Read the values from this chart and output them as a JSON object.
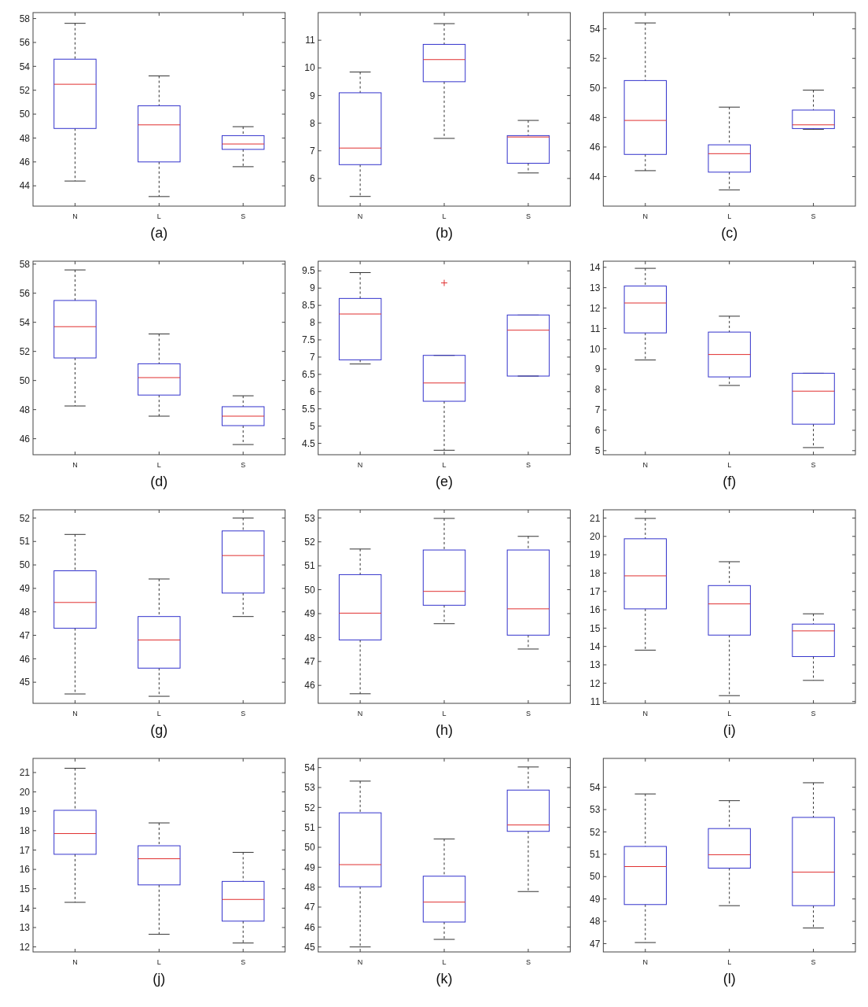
{
  "chart_data": [
    {
      "type": "box",
      "xlabel": "(a)",
      "categories": [
        "N",
        "L",
        "S"
      ],
      "ylim": [
        42.3,
        58.5
      ],
      "yticks": [
        44,
        46,
        48,
        50,
        52,
        54,
        56,
        58
      ],
      "series": [
        {
          "color": "#3333cc",
          "boxes": [
            {
              "low": 44.4,
              "q1": 48.8,
              "median": 52.5,
              "q3": 54.6,
              "high": 57.6
            },
            {
              "low": 43.1,
              "q1": 46.0,
              "median": 49.1,
              "q3": 50.7,
              "high": 53.2
            },
            {
              "low": 45.6,
              "q1": 47.05,
              "median": 47.5,
              "q3": 48.2,
              "high": 48.95
            }
          ]
        }
      ]
    },
    {
      "type": "box",
      "xlabel": "(b)",
      "categories": [
        "N",
        "L",
        "S"
      ],
      "ylim": [
        5,
        12
      ],
      "yticks": [
        6,
        7,
        8,
        9,
        10,
        11
      ],
      "series": [
        {
          "color": "#3333cc",
          "boxes": [
            {
              "low": 5.35,
              "q1": 6.5,
              "median": 7.1,
              "q3": 9.1,
              "high": 9.85
            },
            {
              "low": 7.45,
              "q1": 9.5,
              "median": 10.3,
              "q3": 10.85,
              "high": 11.6
            },
            {
              "low": 6.2,
              "q1": 6.55,
              "median": 7.5,
              "q3": 7.55,
              "high": 8.1
            }
          ]
        }
      ]
    },
    {
      "type": "box",
      "xlabel": "(c)",
      "categories": [
        "N",
        "L",
        "S"
      ],
      "ylim": [
        42,
        55.1
      ],
      "yticks": [
        44,
        46,
        48,
        50,
        52,
        54
      ],
      "series": [
        {
          "color": "#3333cc",
          "boxes": [
            {
              "low": 44.4,
              "q1": 45.5,
              "median": 47.8,
              "q3": 50.5,
              "high": 54.4
            },
            {
              "low": 43.1,
              "q1": 44.3,
              "median": 45.55,
              "q3": 46.15,
              "high": 48.7
            },
            {
              "low": 47.2,
              "q1": 47.25,
              "median": 47.5,
              "q3": 48.5,
              "high": 49.85
            }
          ]
        }
      ]
    },
    {
      "type": "box",
      "xlabel": "(d)",
      "categories": [
        "N",
        "L",
        "S"
      ],
      "ylim": [
        44.9,
        58.2
      ],
      "yticks": [
        46,
        48,
        50,
        52,
        54,
        56,
        58
      ],
      "series": [
        {
          "color": "#3333cc",
          "boxes": [
            {
              "low": 48.25,
              "q1": 51.55,
              "median": 53.7,
              "q3": 55.5,
              "high": 57.6
            },
            {
              "low": 47.55,
              "q1": 49.0,
              "median": 50.2,
              "q3": 51.15,
              "high": 53.2
            },
            {
              "low": 45.6,
              "q1": 46.9,
              "median": 47.55,
              "q3": 48.2,
              "high": 48.95
            }
          ]
        }
      ]
    },
    {
      "type": "box",
      "xlabel": "(e)",
      "categories": [
        "N",
        "L",
        "S"
      ],
      "ylim": [
        4.17,
        9.78
      ],
      "yticks": [
        4.5,
        5,
        5.5,
        6,
        6.5,
        7,
        7.5,
        8,
        8.5,
        9,
        9.5
      ],
      "series": [
        {
          "color": "#3333cc",
          "boxes": [
            {
              "low": 6.8,
              "q1": 6.92,
              "median": 8.25,
              "q3": 8.7,
              "high": 9.45
            },
            {
              "low": 4.3,
              "q1": 5.72,
              "median": 6.25,
              "q3": 7.05,
              "high": 7.05,
              "outliers": [
                9.15
              ]
            },
            {
              "low": 6.45,
              "q1": 6.45,
              "median": 7.78,
              "q3": 8.22,
              "high": 8.22
            }
          ]
        }
      ]
    },
    {
      "type": "box",
      "xlabel": "(f)",
      "categories": [
        "N",
        "L",
        "S"
      ],
      "ylim": [
        4.8,
        14.3
      ],
      "yticks": [
        5,
        6,
        7,
        8,
        9,
        10,
        11,
        12,
        13,
        14
      ],
      "series": [
        {
          "color": "#3333cc",
          "boxes": [
            {
              "low": 9.45,
              "q1": 10.78,
              "median": 12.25,
              "q3": 13.08,
              "high": 13.95
            },
            {
              "low": 8.2,
              "q1": 8.62,
              "median": 9.72,
              "q3": 10.82,
              "high": 11.6
            },
            {
              "low": 5.15,
              "q1": 6.3,
              "median": 7.92,
              "q3": 8.8,
              "high": 8.8
            }
          ]
        }
      ]
    },
    {
      "type": "box",
      "xlabel": "(g)",
      "categories": [
        "N",
        "L",
        "S"
      ],
      "ylim": [
        44.1,
        52.35
      ],
      "yticks": [
        45,
        46,
        47,
        48,
        49,
        50,
        51,
        52
      ],
      "series": [
        {
          "color": "#3333cc",
          "boxes": [
            {
              "low": 44.5,
              "q1": 47.3,
              "median": 48.4,
              "q3": 49.75,
              "high": 51.3
            },
            {
              "low": 44.4,
              "q1": 45.6,
              "median": 46.8,
              "q3": 47.8,
              "high": 49.4
            },
            {
              "low": 47.8,
              "q1": 48.8,
              "median": 50.4,
              "q3": 51.45,
              "high": 52.0
            }
          ]
        }
      ]
    },
    {
      "type": "box",
      "xlabel": "(h)",
      "categories": [
        "N",
        "L",
        "S"
      ],
      "ylim": [
        45.25,
        53.34
      ],
      "yticks": [
        46,
        47,
        48,
        49,
        50,
        51,
        52,
        53
      ],
      "series": [
        {
          "color": "#3333cc",
          "boxes": [
            {
              "low": 45.65,
              "q1": 47.9,
              "median": 49.02,
              "q3": 50.63,
              "high": 51.7
            },
            {
              "low": 48.58,
              "q1": 49.35,
              "median": 49.93,
              "q3": 51.66,
              "high": 52.98
            },
            {
              "low": 47.52,
              "q1": 48.1,
              "median": 49.2,
              "q3": 51.66,
              "high": 52.23
            }
          ]
        }
      ]
    },
    {
      "type": "box",
      "xlabel": "(i)",
      "categories": [
        "N",
        "L",
        "S"
      ],
      "ylim": [
        10.9,
        21.45
      ],
      "yticks": [
        11,
        12,
        13,
        14,
        15,
        16,
        17,
        18,
        19,
        20,
        21
      ],
      "series": [
        {
          "color": "#3333cc",
          "boxes": [
            {
              "low": 13.8,
              "q1": 16.05,
              "median": 17.85,
              "q3": 19.87,
              "high": 20.98
            },
            {
              "low": 11.32,
              "q1": 14.62,
              "median": 16.32,
              "q3": 17.32,
              "high": 18.62
            },
            {
              "low": 12.15,
              "q1": 13.45,
              "median": 14.85,
              "q3": 15.22,
              "high": 15.78
            }
          ]
        }
      ]
    },
    {
      "type": "box",
      "xlabel": "(j)",
      "categories": [
        "N",
        "L",
        "S"
      ],
      "ylim": [
        11.74,
        21.73
      ],
      "yticks": [
        12,
        13,
        14,
        15,
        16,
        17,
        18,
        19,
        20,
        21
      ],
      "series": [
        {
          "color": "#3333cc",
          "boxes": [
            {
              "low": 14.3,
              "q1": 16.78,
              "median": 17.85,
              "q3": 19.05,
              "high": 21.22
            },
            {
              "low": 12.65,
              "q1": 15.2,
              "median": 16.55,
              "q3": 17.22,
              "high": 18.4
            },
            {
              "low": 12.2,
              "q1": 13.33,
              "median": 14.45,
              "q3": 15.38,
              "high": 16.88
            }
          ]
        }
      ]
    },
    {
      "type": "box",
      "xlabel": "(k)",
      "categories": [
        "N",
        "L",
        "S"
      ],
      "ylim": [
        44.75,
        54.46
      ],
      "yticks": [
        45,
        46,
        47,
        48,
        49,
        50,
        51,
        52,
        53,
        54
      ],
      "series": [
        {
          "color": "#3333cc",
          "boxes": [
            {
              "low": 45.0,
              "q1": 48.02,
              "median": 49.13,
              "q3": 51.73,
              "high": 53.32
            },
            {
              "low": 45.38,
              "q1": 46.25,
              "median": 47.25,
              "q3": 48.55,
              "high": 50.42
            },
            {
              "low": 47.78,
              "q1": 50.8,
              "median": 51.12,
              "q3": 52.87,
              "high": 54.03
            }
          ]
        }
      ]
    },
    {
      "type": "box",
      "xlabel": "(l)",
      "categories": [
        "N",
        "L",
        "S"
      ],
      "ylim": [
        46.63,
        55.29
      ],
      "yticks": [
        47,
        48,
        49,
        50,
        51,
        52,
        53,
        54
      ],
      "series": [
        {
          "color": "#3333cc",
          "boxes": [
            {
              "low": 47.05,
              "q1": 48.75,
              "median": 50.45,
              "q3": 51.35,
              "high": 53.7
            },
            {
              "low": 48.7,
              "q1": 50.38,
              "median": 50.98,
              "q3": 52.15,
              "high": 53.4
            },
            {
              "low": 47.7,
              "q1": 48.7,
              "median": 50.2,
              "q3": 52.65,
              "high": 54.2
            }
          ]
        }
      ]
    }
  ]
}
